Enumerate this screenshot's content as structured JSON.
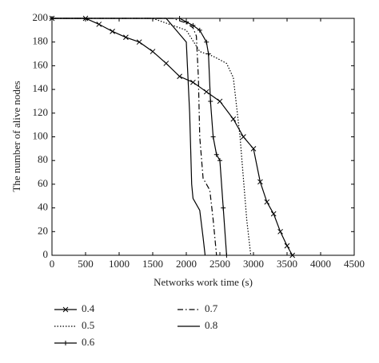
{
  "chart_data": {
    "type": "line",
    "xlabel": "Networks work time (s)",
    "ylabel": "The number of alive nodes",
    "xlim": [
      0,
      4500
    ],
    "xticks": [
      0,
      500,
      1000,
      1500,
      2000,
      2500,
      3000,
      3500,
      4000,
      4500
    ],
    "ylim": [
      0,
      200
    ],
    "yticks": [
      0,
      20,
      40,
      60,
      80,
      100,
      120,
      140,
      160,
      180,
      200
    ],
    "series": [
      {
        "name": "0.4",
        "color": "#000000",
        "linestyle": "solid",
        "marker": "x",
        "x": [
          0,
          500,
          700,
          900,
          1100,
          1300,
          1500,
          1700,
          1900,
          2100,
          2300,
          2500,
          2700,
          2850,
          3000,
          3100,
          3200,
          3300,
          3400,
          3500,
          3580
        ],
        "values": [
          200,
          200,
          195,
          189,
          184,
          180,
          172,
          162,
          151,
          146,
          138,
          130,
          115,
          100,
          90,
          62,
          45,
          35,
          20,
          8,
          0
        ]
      },
      {
        "name": "0.5",
        "color": "#000000",
        "linestyle": "dotted",
        "marker": "none",
        "x": [
          0,
          1500,
          1700,
          2000,
          2200,
          2400,
          2600,
          2700,
          2800,
          2900,
          2960
        ],
        "values": [
          200,
          200,
          196,
          190,
          172,
          168,
          162,
          150,
          100,
          30,
          0
        ]
      },
      {
        "name": "0.6",
        "color": "#000000",
        "linestyle": "solid",
        "marker": "+",
        "x": [
          0,
          1900,
          2000,
          2100,
          2200,
          2300,
          2330,
          2360,
          2400,
          2450,
          2500,
          2550,
          2600
        ],
        "values": [
          200,
          200,
          197,
          194,
          190,
          180,
          170,
          130,
          100,
          85,
          80,
          40,
          0
        ]
      },
      {
        "name": "0.7",
        "color": "#000000",
        "linestyle": "dashdot",
        "marker": "none",
        "x": [
          0,
          1800,
          2000,
          2100,
          2150,
          2180,
          2200,
          2250,
          2350,
          2400,
          2450
        ],
        "values": [
          200,
          200,
          196,
          192,
          185,
          150,
          100,
          65,
          55,
          30,
          0
        ]
      },
      {
        "name": "0.8",
        "color": "#000000",
        "linestyle": "solid",
        "marker": "none",
        "x": [
          0,
          1700,
          1850,
          2000,
          2050,
          2080,
          2100,
          2200,
          2250,
          2280
        ],
        "values": [
          200,
          200,
          190,
          180,
          120,
          60,
          48,
          38,
          15,
          0
        ]
      }
    ]
  }
}
